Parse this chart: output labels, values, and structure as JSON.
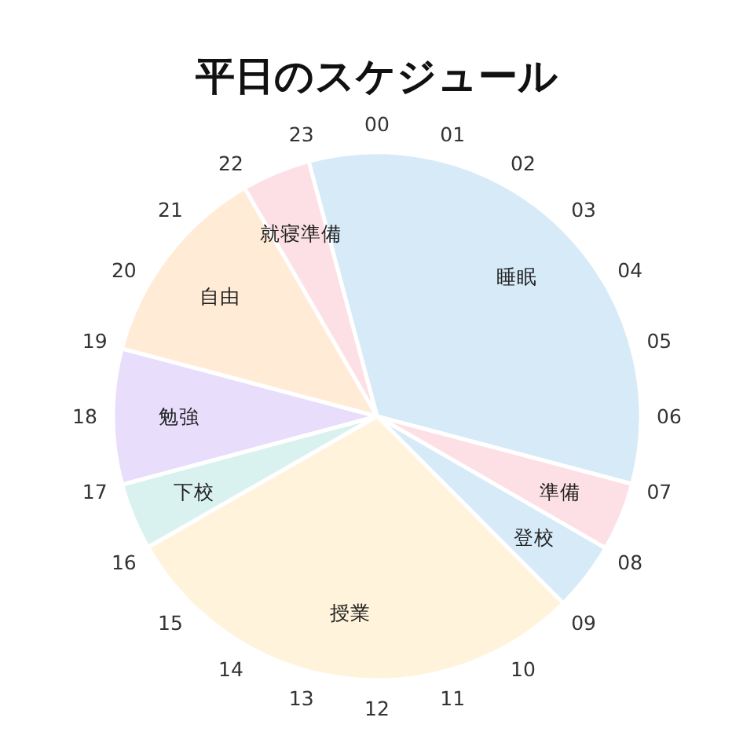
{
  "chart_data": {
    "type": "pie",
    "title": "平日のスケジュール",
    "categories": [
      "睡眠",
      "準備",
      "登校",
      "授業",
      "下校",
      "勉強",
      "自由",
      "就寝準備"
    ],
    "values": [
      33.3,
      4.2,
      4.2,
      29.2,
      4.1,
      8.3,
      12.5,
      4.2
    ],
    "colors": [
      "#d6eaf8",
      "#fde0e6",
      "#d6eaf8",
      "#fff3dc",
      "#d9f2f0",
      "#e8defc",
      "#ffebd6",
      "#fde0e6"
    ],
    "annotations": [
      "00",
      "01",
      "02",
      "03",
      "04",
      "05",
      "06",
      "07",
      "08",
      "09",
      "10",
      "11",
      "12",
      "13",
      "14",
      "15",
      "16",
      "17",
      "18",
      "19",
      "20",
      "21",
      "22",
      "23"
    ]
  }
}
